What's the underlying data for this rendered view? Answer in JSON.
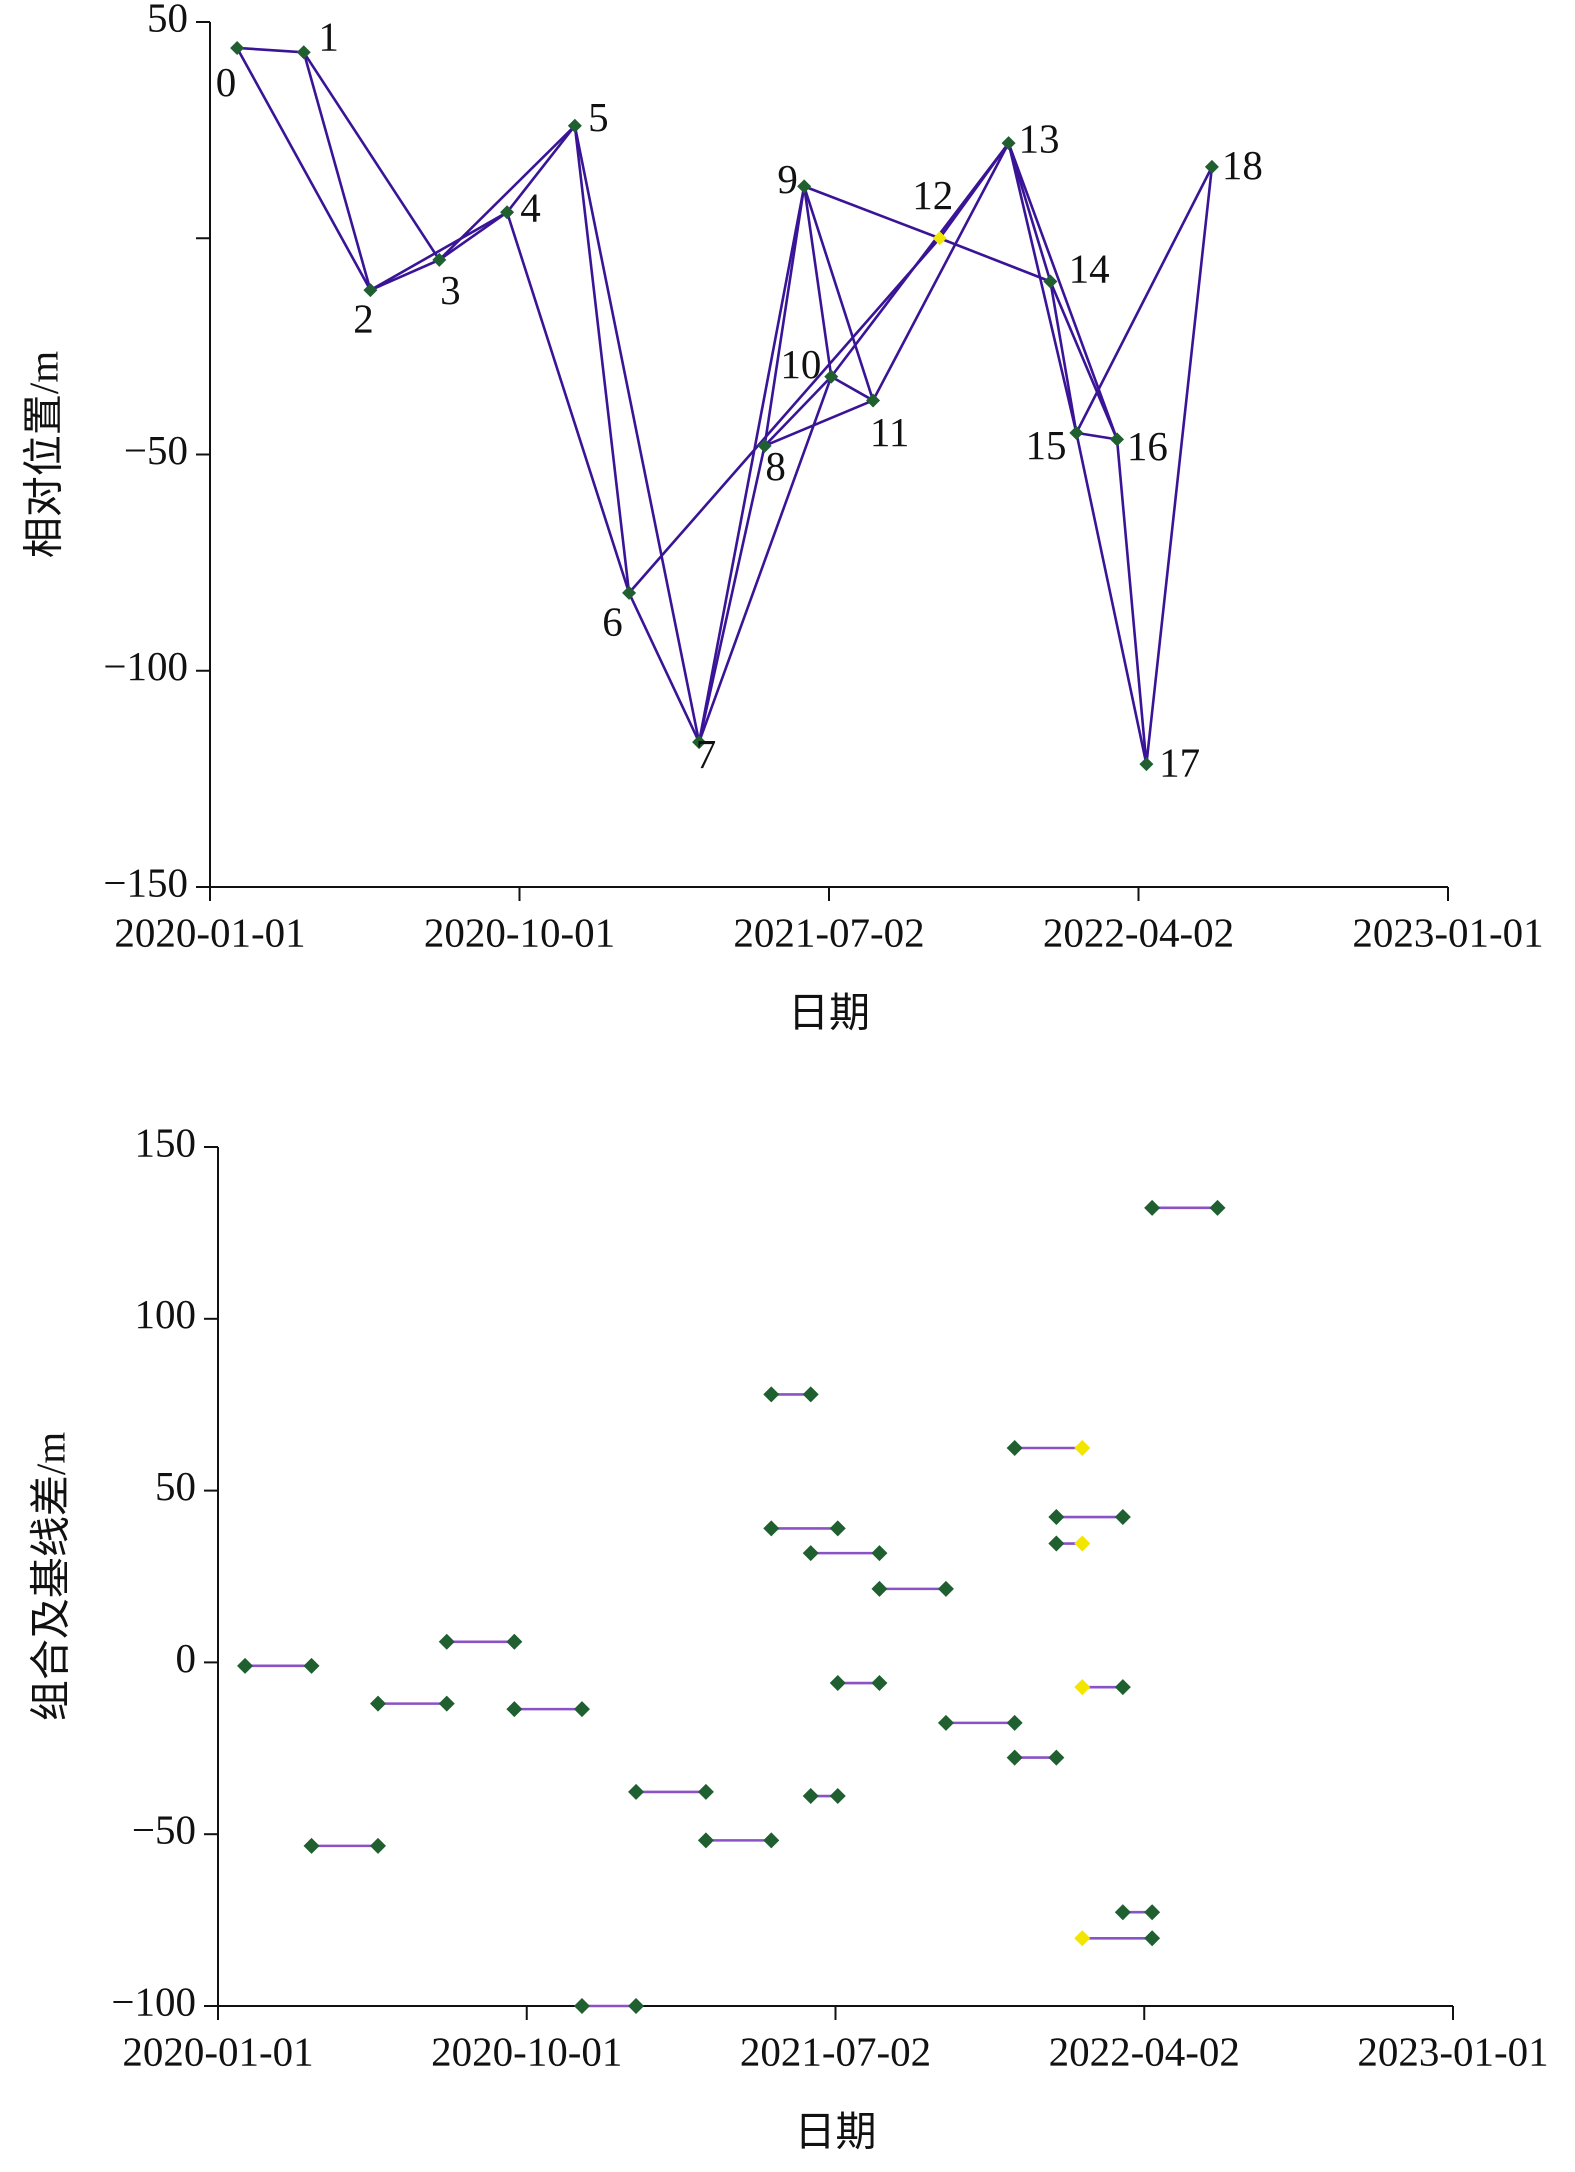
{
  "chart_data": [
    {
      "type": "network",
      "xlabel": "日期",
      "ylabel": "相对位置/m",
      "x": [
        "2020-01-25",
        "2020-03-24",
        "2020-05-22",
        "2020-07-22",
        "2020-09-20",
        "2020-11-19",
        "2021-01-06",
        "2021-03-09",
        "2021-05-06",
        "2021-06-10",
        "2021-07-04",
        "2021-08-10",
        "2021-10-08",
        "2021-12-08",
        "2022-01-14",
        "2022-02-06",
        "2022-03-14",
        "2022-04-09",
        "2022-06-06"
      ],
      "values": [
        44,
        43,
        -12,
        -5,
        6,
        26,
        -82,
        -116.5,
        -48,
        12,
        -32,
        -37.5,
        0,
        22,
        -10,
        -45,
        -46.5,
        -121.6,
        16.5
      ],
      "labels": [
        "0",
        "1",
        "2",
        "3",
        "4",
        "5",
        "6",
        "7",
        "8",
        "9",
        "10",
        "11",
        "12",
        "13",
        "14",
        "15",
        "16",
        "17",
        "18"
      ],
      "point_colors": [
        "#1f5f30",
        "#1f5f30",
        "#1f5f30",
        "#1f5f30",
        "#1f5f30",
        "#1f5f30",
        "#1f5f30",
        "#1f5f30",
        "#1f5f30",
        "#1f5f30",
        "#1f5f30",
        "#1f5f30",
        "#f2e600",
        "#1f5f30",
        "#1f5f30",
        "#1f5f30",
        "#1f5f30",
        "#1f5f30",
        "#1f5f30"
      ],
      "edges": [
        [
          0,
          1
        ],
        [
          0,
          2
        ],
        [
          1,
          2
        ],
        [
          1,
          3
        ],
        [
          2,
          3
        ],
        [
          2,
          4
        ],
        [
          3,
          4
        ],
        [
          3,
          5
        ],
        [
          4,
          5
        ],
        [
          4,
          6
        ],
        [
          5,
          6
        ],
        [
          5,
          7
        ],
        [
          6,
          7
        ],
        [
          6,
          12
        ],
        [
          7,
          8
        ],
        [
          7,
          9
        ],
        [
          7,
          10
        ],
        [
          8,
          9
        ],
        [
          8,
          10
        ],
        [
          8,
          11
        ],
        [
          9,
          10
        ],
        [
          9,
          11
        ],
        [
          9,
          12
        ],
        [
          10,
          11
        ],
        [
          10,
          13
        ],
        [
          11,
          13
        ],
        [
          12,
          13
        ],
        [
          12,
          14
        ],
        [
          13,
          14
        ],
        [
          13,
          15
        ],
        [
          13,
          16
        ],
        [
          14,
          15
        ],
        [
          14,
          16
        ],
        [
          15,
          16
        ],
        [
          15,
          17
        ],
        [
          15,
          18
        ],
        [
          16,
          17
        ],
        [
          17,
          18
        ]
      ],
      "line_color": "#3a1497",
      "xlim": [
        "2020-01-01",
        "2023-01-01"
      ],
      "xticks": [
        "2020-01-01",
        "2020-10-01",
        "2021-07-02",
        "2022-04-02",
        "2023-01-01"
      ],
      "ylim": [
        -150,
        50
      ],
      "yticks": [
        50,
        {
          "value": -50,
          "label": "−50"
        },
        {
          "value": -100,
          "label": "−100"
        },
        {
          "value": -150,
          "label": "−150"
        }
      ],
      "yminor": [
        0
      ]
    },
    {
      "type": "interval",
      "xlabel": "日期",
      "ylabel": "组合及基线差/m",
      "x_start": [
        "2020-01-25",
        "2020-03-24",
        "2020-05-22",
        "2020-07-22",
        "2020-09-20",
        "2020-11-19",
        "2021-01-06",
        "2021-03-09",
        "2021-05-06",
        "2021-05-06",
        "2021-06-10",
        "2021-06-10",
        "2021-07-04",
        "2021-08-10",
        "2021-10-08",
        "2021-12-08",
        "2021-12-08",
        "2022-01-14",
        "2022-01-14",
        "2022-02-06",
        "2022-03-14",
        "2022-02-06",
        "2022-04-09"
      ],
      "x_end": [
        "2020-03-24",
        "2020-05-22",
        "2020-07-22",
        "2020-09-20",
        "2020-11-19",
        "2021-01-06",
        "2021-03-09",
        "2021-05-06",
        "2021-06-10",
        "2021-07-04",
        "2021-08-10",
        "2021-07-04",
        "2021-08-10",
        "2021-10-08",
        "2021-12-08",
        "2022-02-06",
        "2022-01-14",
        "2022-03-14",
        "2022-02-06",
        "2022-03-14",
        "2022-04-09",
        "2022-04-09",
        "2022-06-06"
      ],
      "values": [
        -1,
        -53.4,
        -12,
        6,
        -13.6,
        -100,
        -37.7,
        -51.8,
        78,
        39,
        31.8,
        -38.9,
        -6,
        21.4,
        -17.6,
        62.4,
        -27.7,
        42.3,
        34.6,
        -7.2,
        -72.7,
        -80.3,
        132.3
      ],
      "start_colors": [
        "#1f5f30",
        "#1f5f30",
        "#1f5f30",
        "#1f5f30",
        "#1f5f30",
        "#1f5f30",
        "#1f5f30",
        "#1f5f30",
        "#1f5f30",
        "#1f5f30",
        "#1f5f30",
        "#1f5f30",
        "#1f5f30",
        "#1f5f30",
        "#1f5f30",
        "#1f5f30",
        "#1f5f30",
        "#1f5f30",
        "#1f5f30",
        "#f2e600",
        "#1f5f30",
        "#f2e600",
        "#1f5f30"
      ],
      "end_colors": [
        "#1f5f30",
        "#1f5f30",
        "#1f5f30",
        "#1f5f30",
        "#1f5f30",
        "#1f5f30",
        "#1f5f30",
        "#1f5f30",
        "#1f5f30",
        "#1f5f30",
        "#1f5f30",
        "#1f5f30",
        "#1f5f30",
        "#1f5f30",
        "#1f5f30",
        "#f2e600",
        "#1f5f30",
        "#1f5f30",
        "#f2e600",
        "#1f5f30",
        "#1f5f30",
        "#1f5f30",
        "#1f5f30"
      ],
      "line_color": "#8a52c4",
      "xlim": [
        "2020-01-01",
        "2023-01-01"
      ],
      "xticks": [
        "2020-01-01",
        "2020-10-01",
        "2021-07-02",
        "2022-04-02",
        "2023-01-01"
      ],
      "ylim": [
        -100,
        150
      ],
      "yticks": [
        150,
        100,
        50,
        0,
        {
          "value": -50,
          "label": "−50"
        },
        {
          "value": -100,
          "label": "−100"
        }
      ]
    }
  ]
}
